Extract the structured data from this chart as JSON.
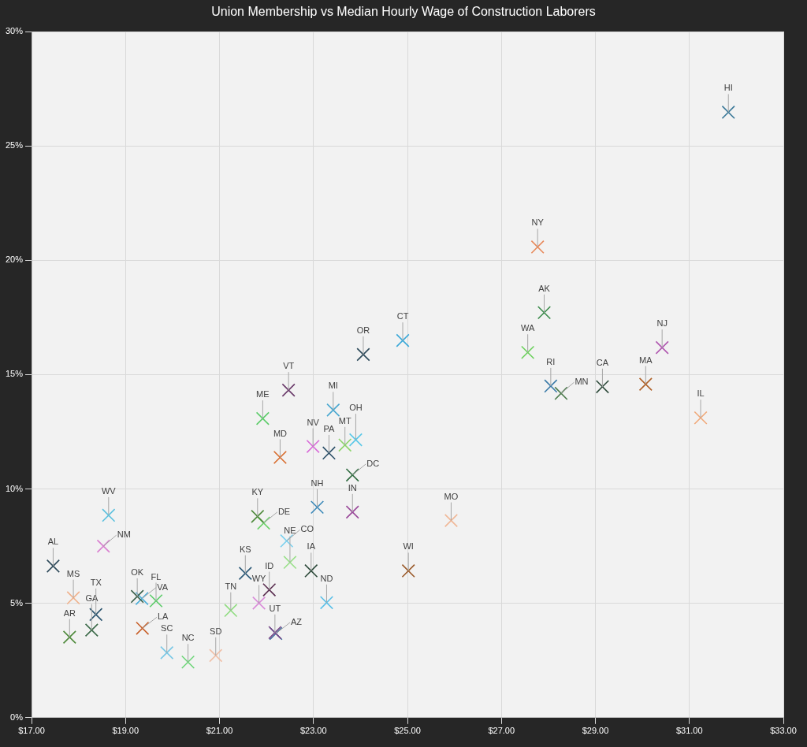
{
  "chart_data": {
    "type": "scatter",
    "title": "Union Membership vs Median Hourly Wage of Construction Laborers",
    "marker": "cross",
    "grid": true,
    "legend": false,
    "xlim": [
      17,
      33
    ],
    "xticks": [
      {
        "value": 17,
        "label": "$17.00"
      },
      {
        "value": 19,
        "label": "$19.00"
      },
      {
        "value": 21,
        "label": "$21.00"
      },
      {
        "value": 23,
        "label": "$23.00"
      },
      {
        "value": 25,
        "label": "$25.00"
      },
      {
        "value": 27,
        "label": "$27.00"
      },
      {
        "value": 29,
        "label": "$29.00"
      },
      {
        "value": 31,
        "label": "$31.00"
      },
      {
        "value": 33,
        "label": "$33.00"
      }
    ],
    "ylim": [
      0,
      30
    ],
    "yticks": [
      {
        "value": 0,
        "label": "0%"
      },
      {
        "value": 5,
        "label": "5%"
      },
      {
        "value": 10,
        "label": "10%"
      },
      {
        "value": 15,
        "label": "15%"
      },
      {
        "value": 20,
        "label": "20%"
      },
      {
        "value": 25,
        "label": "25%"
      },
      {
        "value": 30,
        "label": "30%"
      }
    ],
    "series": [
      {
        "name": "AL",
        "color": "#2e4a5a",
        "x": [
          17.46
        ],
        "values": [
          6.63
        ]
      },
      {
        "name": "MS",
        "color": "#f0b28c",
        "x": [
          17.89
        ],
        "values": [
          5.24
        ]
      },
      {
        "name": "AR",
        "color": "#4f8a3c",
        "x": [
          17.81
        ],
        "values": [
          3.52
        ]
      },
      {
        "name": "GA",
        "color": "#3d6b4a",
        "x": [
          18.28
        ],
        "values": [
          3.83
        ]
      },
      {
        "name": "TX",
        "color": "#2d5670",
        "x": [
          18.37
        ],
        "values": [
          4.51
        ]
      },
      {
        "name": "WV",
        "color": "#5bc0de",
        "x": [
          18.64
        ],
        "values": [
          8.85
        ]
      },
      {
        "name": "NM",
        "color": "#d97fd0",
        "x": [
          18.53
        ],
        "values": [
          7.5
        ]
      },
      {
        "name": "OK",
        "color": "#3a5f4a",
        "x": [
          19.25
        ],
        "values": [
          5.3
        ]
      },
      {
        "name": "VA",
        "color": "#4aaed8",
        "x": [
          19.35
        ],
        "values": [
          5.21
        ]
      },
      {
        "name": "FL",
        "color": "#5dcc6a",
        "x": [
          19.65
        ],
        "values": [
          5.11
        ]
      },
      {
        "name": "LA",
        "color": "#c8602a",
        "x": [
          19.36
        ],
        "values": [
          3.91
        ]
      },
      {
        "name": "SC",
        "color": "#7ac8e6",
        "x": [
          19.88
        ],
        "values": [
          2.84
        ]
      },
      {
        "name": "NC",
        "color": "#6fd67a",
        "x": [
          20.33
        ],
        "values": [
          2.43
        ]
      },
      {
        "name": "SD",
        "color": "#f0c0a8",
        "x": [
          20.92
        ],
        "values": [
          2.72
        ]
      },
      {
        "name": "TN",
        "color": "#8fdc80",
        "x": [
          21.24
        ],
        "values": [
          4.69
        ]
      },
      {
        "name": "KS",
        "color": "#2d5a78",
        "x": [
          21.55
        ],
        "values": [
          6.31
        ]
      },
      {
        "name": "KY",
        "color": "#4f8a3c",
        "x": [
          21.81
        ],
        "values": [
          8.8
        ]
      },
      {
        "name": "DE",
        "color": "#6cd26a",
        "x": [
          21.94
        ],
        "values": [
          8.51
        ]
      },
      {
        "name": "WY",
        "color": "#d98ad8",
        "x": [
          21.84
        ],
        "values": [
          5.01
        ]
      },
      {
        "name": "ID",
        "color": "#5a2e50",
        "x": [
          22.06
        ],
        "values": [
          5.59
        ]
      },
      {
        "name": "UT",
        "color": "#7a4a8a",
        "x": [
          22.18
        ],
        "values": [
          3.72
        ]
      },
      {
        "name": "AZ",
        "color": "#3a6a9a",
        "x": [
          22.2
        ],
        "values": [
          3.68
        ]
      },
      {
        "name": "CO",
        "color": "#7ad0ee",
        "x": [
          22.43
        ],
        "values": [
          7.73
        ]
      },
      {
        "name": "NE",
        "color": "#9ae08a",
        "x": [
          22.5
        ],
        "values": [
          6.79
        ]
      },
      {
        "name": "IA",
        "color": "#2d4a3a",
        "x": [
          22.95
        ],
        "values": [
          6.42
        ]
      },
      {
        "name": "ND",
        "color": "#5bc0e8",
        "x": [
          23.28
        ],
        "values": [
          5.03
        ]
      },
      {
        "name": "NH",
        "color": "#3a88b8",
        "x": [
          23.08
        ],
        "values": [
          9.2
        ]
      },
      {
        "name": "IN",
        "color": "#9a4a9a",
        "x": [
          23.83
        ],
        "values": [
          8.99
        ]
      },
      {
        "name": "DC",
        "color": "#2e6a3e",
        "x": [
          23.83
        ],
        "values": [
          10.61
        ]
      },
      {
        "name": "OR",
        "color": "#2d4a5a",
        "x": [
          24.06
        ],
        "values": [
          15.88
        ]
      },
      {
        "name": "CT",
        "color": "#3aa8d8",
        "x": [
          24.9
        ],
        "values": [
          16.49
        ]
      },
      {
        "name": "VT",
        "color": "#6a3a6a",
        "x": [
          22.47
        ],
        "values": [
          14.32
        ]
      },
      {
        "name": "MI",
        "color": "#4aa8d0",
        "x": [
          23.42
        ],
        "values": [
          13.45
        ]
      },
      {
        "name": "ME",
        "color": "#5dcc6a",
        "x": [
          21.92
        ],
        "values": [
          13.08
        ]
      },
      {
        "name": "PA",
        "color": "#2d5068",
        "x": [
          23.33
        ],
        "values": [
          11.57
        ]
      },
      {
        "name": "NV",
        "color": "#d86ad8",
        "x": [
          22.99
        ],
        "values": [
          11.86
        ]
      },
      {
        "name": "MT",
        "color": "#8cd46a",
        "x": [
          23.67
        ],
        "values": [
          11.92
        ]
      },
      {
        "name": "OH",
        "color": "#5ac8e8",
        "x": [
          23.9
        ],
        "values": [
          12.15
        ]
      },
      {
        "name": "MD",
        "color": "#d86a2a",
        "x": [
          22.29
        ],
        "values": [
          11.38
        ]
      },
      {
        "name": "MO",
        "color": "#f0b898",
        "x": [
          25.93
        ],
        "values": [
          8.62
        ]
      },
      {
        "name": "WI",
        "color": "#9a5a2a",
        "x": [
          25.02
        ],
        "values": [
          6.42
        ]
      },
      {
        "name": "NY",
        "color": "#e8895a",
        "x": [
          27.77
        ],
        "values": [
          20.58
        ]
      },
      {
        "name": "AK",
        "color": "#3a8a4a",
        "x": [
          27.91
        ],
        "values": [
          17.71
        ]
      },
      {
        "name": "WA",
        "color": "#6ad05a",
        "x": [
          27.56
        ],
        "values": [
          15.97
        ]
      },
      {
        "name": "RI",
        "color": "#3a7aa8",
        "x": [
          28.05
        ],
        "values": [
          14.5
        ]
      },
      {
        "name": "MN",
        "color": "#4a7a4a",
        "x": [
          28.27
        ],
        "values": [
          14.18
        ]
      },
      {
        "name": "CA",
        "color": "#2d4a3a",
        "x": [
          29.15
        ],
        "values": [
          14.47
        ]
      },
      {
        "name": "MA",
        "color": "#b0622a",
        "x": [
          30.07
        ],
        "values": [
          14.58
        ]
      },
      {
        "name": "NJ",
        "color": "#b058b0",
        "x": [
          30.42
        ],
        "values": [
          16.18
        ]
      },
      {
        "name": "IL",
        "color": "#f0a878",
        "x": [
          31.24
        ],
        "values": [
          13.11
        ]
      },
      {
        "name": "HI",
        "color": "#3a7898",
        "x": [
          31.83
        ],
        "values": [
          26.47
        ]
      }
    ]
  }
}
